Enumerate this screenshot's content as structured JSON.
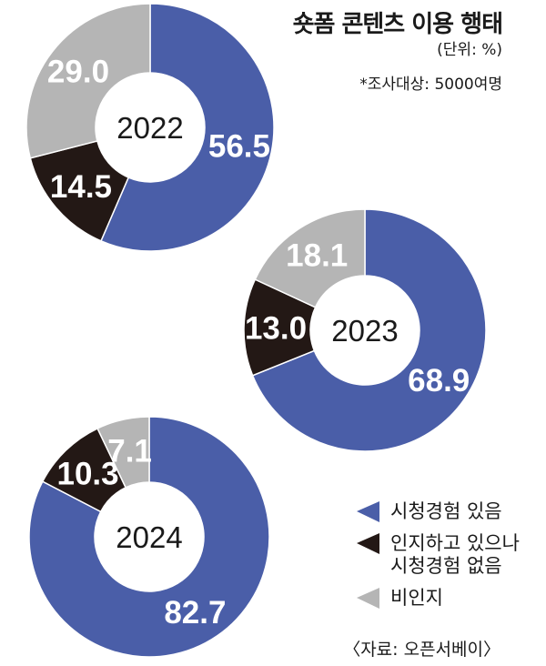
{
  "header": {
    "title": "숏폼 콘텐츠 이용 행태",
    "unit": "(단위: %)",
    "note": "*조사대상: 5000여명"
  },
  "colors": {
    "viewed": "#4a5ea8",
    "aware": "#231815",
    "unaware": "#b5b5b5"
  },
  "legend": [
    {
      "key": "viewed",
      "label": "시청경험 있음"
    },
    {
      "key": "aware",
      "label": "인지하고 있으나\n시청경험 없음"
    },
    {
      "key": "unaware",
      "label": "비인지"
    }
  ],
  "source": "〈자료: 오픈서베이〉",
  "chart_data": [
    {
      "type": "pie",
      "center_label": "2022",
      "categories": [
        "시청경험 있음",
        "인지하고 있으나 시청경험 없음",
        "비인지"
      ],
      "values": [
        56.5,
        14.5,
        29.0
      ],
      "value_labels": [
        "56.5",
        "14.5",
        "29.0"
      ]
    },
    {
      "type": "pie",
      "center_label": "2023",
      "categories": [
        "시청경험 있음",
        "인지하고 있으나 시청경험 없음",
        "비인지"
      ],
      "values": [
        68.9,
        13.0,
        18.1
      ],
      "value_labels": [
        "68.9",
        "13.0",
        "18.1"
      ]
    },
    {
      "type": "pie",
      "center_label": "2024",
      "categories": [
        "시청경험 있음",
        "인지하고 있으나 시청경험 없음",
        "비인지"
      ],
      "values": [
        82.7,
        10.3,
        7.1
      ],
      "value_labels": [
        "82.7",
        "10.3",
        "7.1"
      ]
    }
  ]
}
